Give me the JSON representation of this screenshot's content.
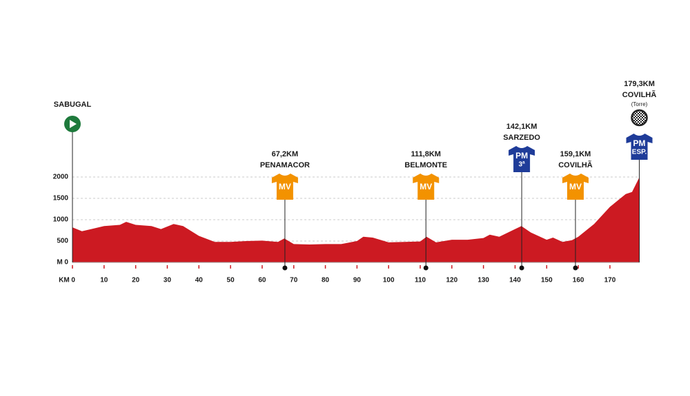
{
  "chart_data": {
    "type": "area",
    "x": [
      0,
      3,
      10,
      15,
      17,
      20,
      25,
      28,
      32,
      35,
      40,
      45,
      50,
      55,
      60,
      65,
      67,
      70,
      75,
      80,
      85,
      90,
      92,
      95,
      100,
      105,
      110,
      112,
      115,
      120,
      125,
      130,
      132,
      135,
      140,
      142,
      145,
      150,
      152,
      155,
      158,
      160,
      165,
      170,
      175,
      177,
      179.3
    ],
    "values": [
      820,
      730,
      850,
      880,
      950,
      880,
      850,
      780,
      900,
      850,
      620,
      480,
      480,
      500,
      510,
      480,
      560,
      430,
      420,
      430,
      430,
      500,
      600,
      580,
      470,
      480,
      490,
      600,
      470,
      530,
      530,
      570,
      650,
      600,
      780,
      850,
      700,
      530,
      580,
      480,
      520,
      600,
      900,
      1300,
      1600,
      1650,
      1990
    ],
    "color": "#cc1a22",
    "xlim": [
      0,
      179.3
    ],
    "ylim": [
      0,
      2000
    ],
    "xticks": [
      {
        "value": 0,
        "label": "KM 0"
      },
      10,
      20,
      30,
      40,
      50,
      60,
      70,
      80,
      90,
      100,
      110,
      120,
      130,
      140,
      150,
      160,
      170
    ],
    "yticks": [
      {
        "value": 0,
        "label": "M 0"
      },
      500,
      1000,
      1500,
      2000
    ],
    "grid": true,
    "start": {
      "label": "SABUGAL",
      "km": 0,
      "color": "#1e7a3c"
    },
    "markers": [
      {
        "km": 67.2,
        "km_label": "67,2KM",
        "place": "PENAMACOR",
        "badge": "MV",
        "color": "#f39200"
      },
      {
        "km": 111.8,
        "km_label": "111,8KM",
        "place": "BELMONTE",
        "badge": "MV",
        "color": "#f39200"
      },
      {
        "km": 142.1,
        "km_label": "142,1KM",
        "place": "SARZEDO",
        "badge": "PM",
        "badge_sub": "3ª",
        "color": "#1f3c99"
      },
      {
        "km": 159.1,
        "km_label": "159,1KM",
        "place": "COVILHÃ",
        "badge": "MV",
        "color": "#f39200"
      }
    ],
    "finish": {
      "km": 179.3,
      "km_label": "179,3KM",
      "place": "COVILHÃ",
      "sublabel": "(Torre)",
      "badge": "PM",
      "badge_sub": "ESP.",
      "color": "#1f3c99"
    }
  }
}
